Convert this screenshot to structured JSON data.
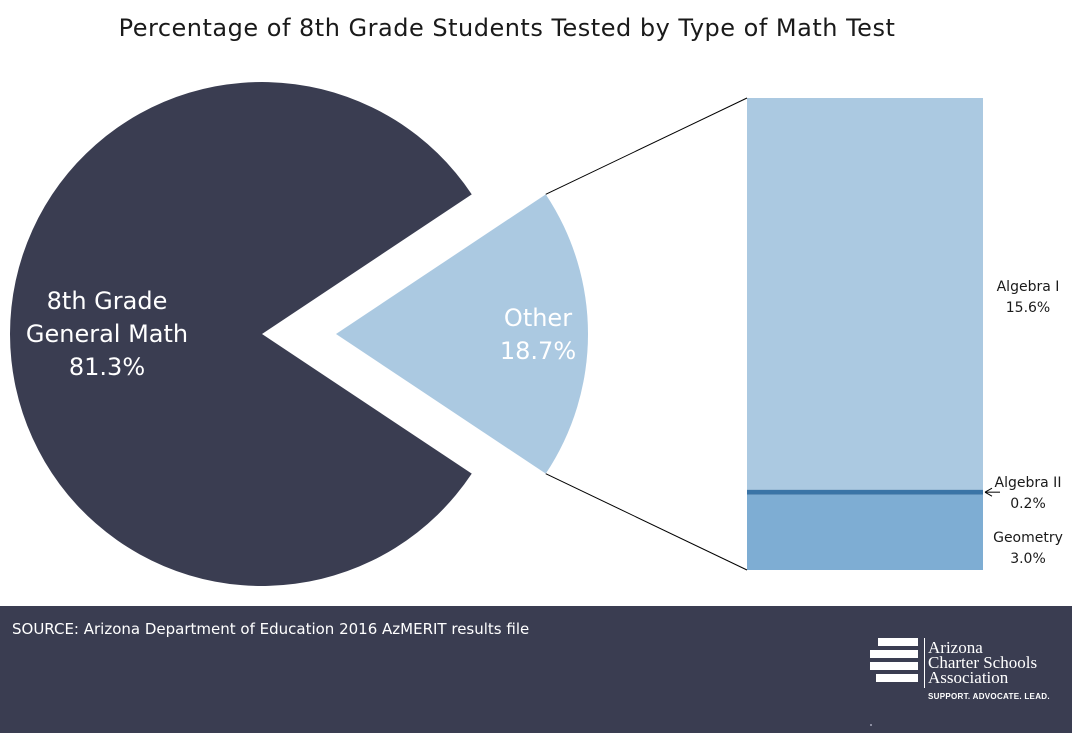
{
  "chart_data": {
    "type": "bar-of-pie",
    "title": "Percentage of 8th Grade Students Tested by Type of Math Test",
    "pie": {
      "slices": [
        {
          "label_lines": [
            "8th Grade",
            "General Math"
          ],
          "value": 81.3,
          "value_text": "81.3%",
          "color": "#3a3d51"
        },
        {
          "label_lines": [
            "Other"
          ],
          "value": 18.7,
          "value_text": "18.7%",
          "color": "#abc9e1"
        }
      ]
    },
    "bar": {
      "segments": [
        {
          "label": "Geometry",
          "value": 3.0,
          "value_text": "3.0%",
          "color": "#7eadd3"
        },
        {
          "label": "Algebra II",
          "value": 0.2,
          "value_text": "0.2%",
          "color": "#3a74a6"
        },
        {
          "label": "Algebra I",
          "value": 15.6,
          "value_text": "15.6%",
          "color": "#abc9e1"
        }
      ]
    }
  },
  "footer": {
    "source": "SOURCE: Arizona Department of Education 2016 AzMERIT results file",
    "logo_lines": [
      "Arizona",
      "Charter Schools",
      "Association"
    ],
    "tagline": "SUPPORT. ADVOCATE. LEAD."
  }
}
